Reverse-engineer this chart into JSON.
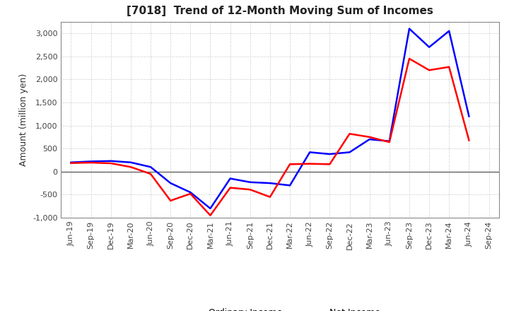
{
  "title": "[7018]  Trend of 12-Month Moving Sum of Incomes",
  "ylabel": "Amount (million yen)",
  "ylim": [
    -1000,
    3250
  ],
  "yticks": [
    -1000,
    -500,
    0,
    500,
    1000,
    1500,
    2000,
    2500,
    3000
  ],
  "labels": [
    "Jun-19",
    "Sep-19",
    "Dec-19",
    "Mar-20",
    "Jun-20",
    "Sep-20",
    "Dec-20",
    "Mar-21",
    "Jun-21",
    "Sep-21",
    "Dec-21",
    "Mar-22",
    "Jun-22",
    "Sep-22",
    "Dec-22",
    "Mar-23",
    "Jun-23",
    "Sep-23",
    "Dec-23",
    "Mar-24",
    "Jun-24",
    "Sep-24"
  ],
  "ordinary_income": [
    200,
    220,
    230,
    200,
    100,
    -250,
    -450,
    -800,
    -150,
    -230,
    -250,
    -300,
    420,
    380,
    420,
    700,
    660,
    3100,
    2700,
    3050,
    1200,
    null
  ],
  "net_income": [
    185,
    195,
    180,
    100,
    -50,
    -630,
    -480,
    -950,
    -350,
    -390,
    -550,
    160,
    170,
    160,
    820,
    750,
    640,
    2450,
    2200,
    2270,
    680,
    null
  ],
  "ordinary_color": "#0000FF",
  "net_color": "#FF0000",
  "bg_color": "#FFFFFF",
  "plot_bg_color": "#FFFFFF",
  "grid_color": "#AAAAAA",
  "title_fontsize": 11,
  "label_fontsize": 9,
  "tick_fontsize": 8,
  "legend_fontsize": 9,
  "line_width": 1.8
}
